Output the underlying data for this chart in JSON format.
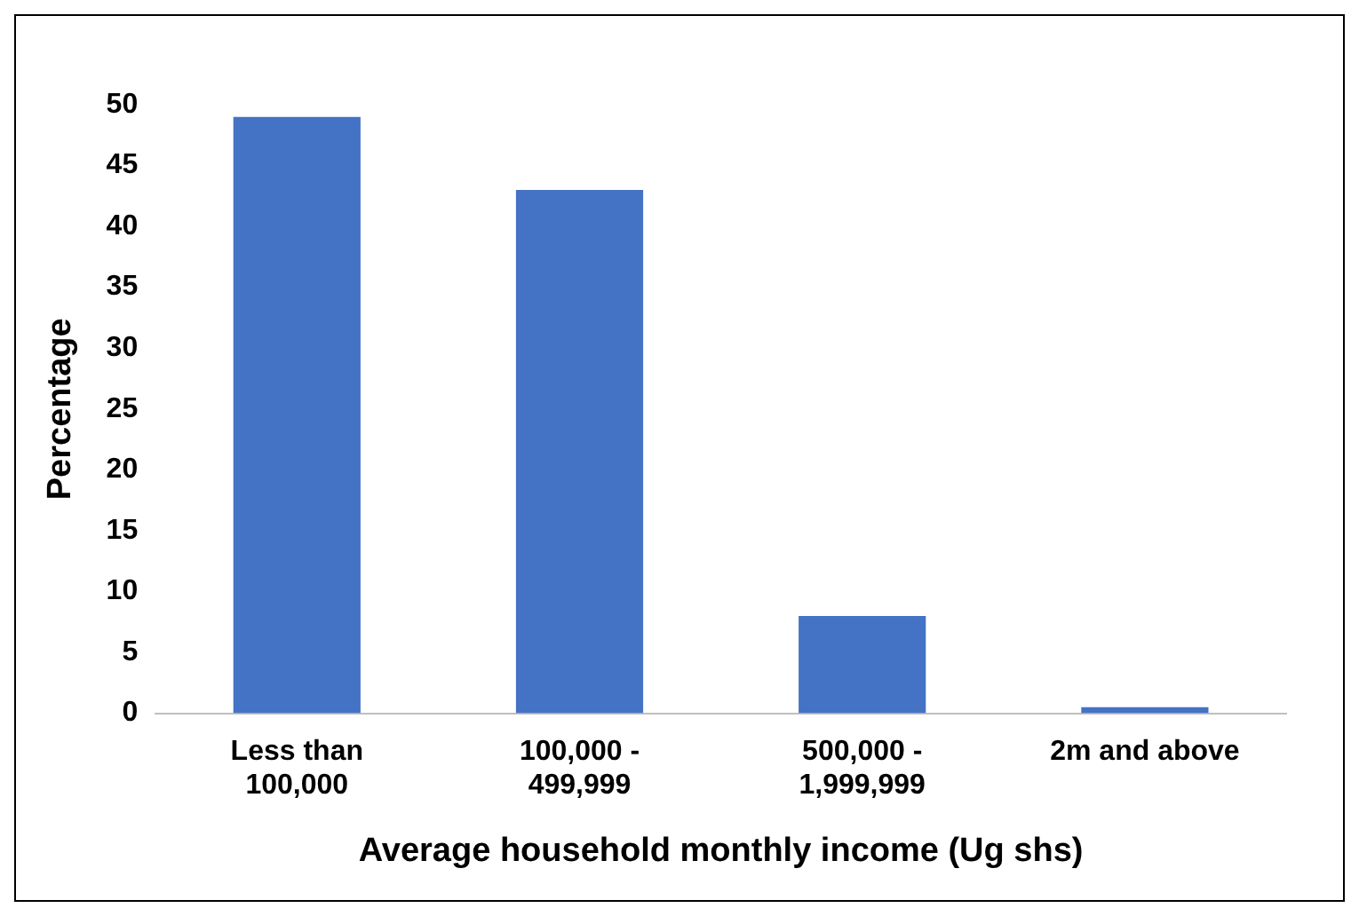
{
  "chart_data": {
    "type": "bar",
    "xlabel": "Average household monthly income (Ug shs)",
    "ylabel": "Percentage",
    "categories": [
      "Less than 100,000",
      "100,000 - 499,999",
      "500,000 - 1,999,999",
      "2m and above"
    ],
    "values": [
      49,
      43,
      8,
      0.5
    ],
    "color": "#4472c4",
    "ylim": [
      0,
      50
    ],
    "yticks": [
      0,
      5,
      10,
      15,
      20,
      25,
      30,
      35,
      40,
      45,
      50
    ],
    "grid": false,
    "legend": false
  }
}
